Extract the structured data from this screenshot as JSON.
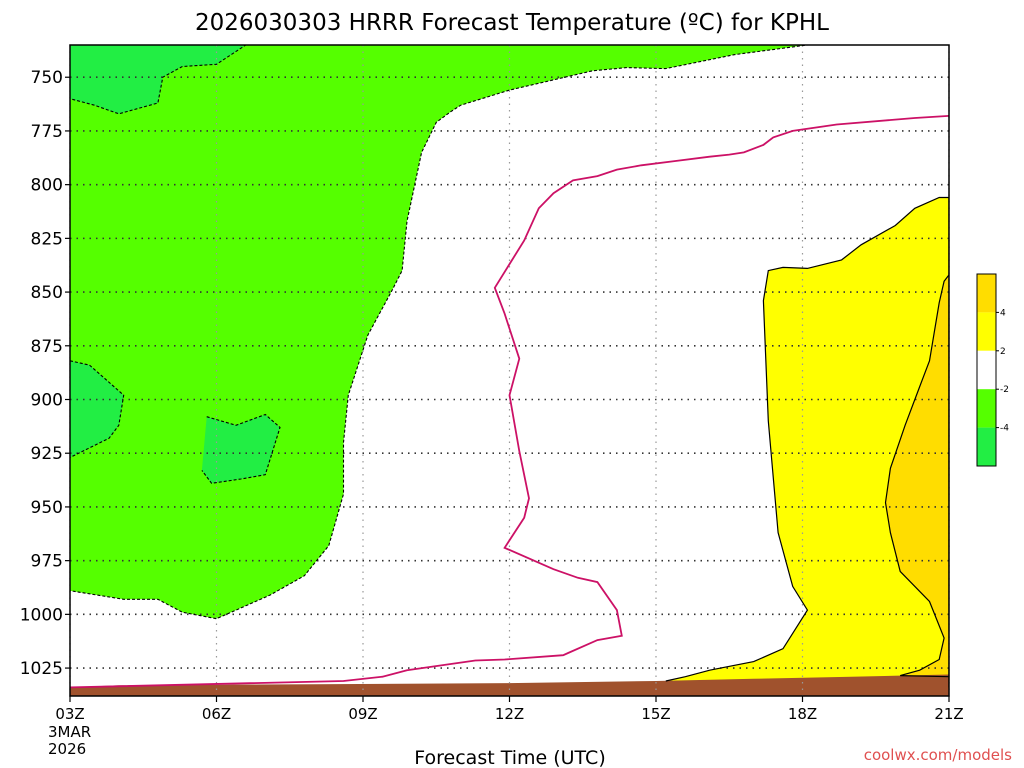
{
  "chart_data": {
    "type": "contour",
    "title": "2026030303 HRRR Forecast Temperature (ºC) for KPHL",
    "xlabel": "Forecast Time (UTC)",
    "ylabel": "",
    "date_label_line1": "3MAR",
    "date_label_line2": "2026",
    "credit": "coolwx.com/models",
    "x_tick_labels": [
      "03Z",
      "06Z",
      "09Z",
      "12Z",
      "15Z",
      "18Z",
      "21Z"
    ],
    "x_hours": [
      0,
      3,
      6,
      9,
      12,
      15,
      18
    ],
    "xlim": [
      0,
      18
    ],
    "y_tick_labels": [
      "750",
      "775",
      "800",
      "825",
      "850",
      "875",
      "900",
      "925",
      "950",
      "975",
      "1000",
      "1025"
    ],
    "y_levels": [
      750,
      775,
      800,
      825,
      850,
      875,
      900,
      925,
      950,
      975,
      1000,
      1025
    ],
    "ylim_hpa": [
      735,
      1038
    ],
    "colorbar_labels": [
      "4",
      "2",
      "-2",
      "-4"
    ],
    "fill_colors": {
      "below_minus4": "#22ee44",
      "minus4_to_minus2": "#55ff00",
      "minus2_to_2": "#ffffff",
      "2_to_4": "#ffff00",
      "above_4": "#ffdd00",
      "ground": "#a0522d",
      "zero_line": "#cc1166"
    },
    "regions": {
      "cold_minus2": [
        [
          0,
          735
        ],
        [
          15.1,
          735
        ],
        [
          13.6,
          739.5
        ],
        [
          12.2,
          746
        ],
        [
          11.4,
          745.5
        ],
        [
          10.7,
          747
        ],
        [
          9,
          756
        ],
        [
          8,
          763
        ],
        [
          7.8,
          766
        ],
        [
          7.5,
          771
        ],
        [
          7.2,
          785
        ],
        [
          6.9,
          817
        ],
        [
          6.8,
          840
        ],
        [
          6.6,
          849
        ],
        [
          6.1,
          870
        ],
        [
          5.7,
          898
        ],
        [
          5.6,
          920
        ],
        [
          5.6,
          944
        ],
        [
          5.3,
          968
        ],
        [
          4.8,
          982
        ],
        [
          4.1,
          991
        ],
        [
          3.6,
          996
        ],
        [
          3,
          1002
        ],
        [
          2.3,
          999
        ],
        [
          1.8,
          993
        ],
        [
          1.1,
          993
        ],
        [
          0,
          989
        ]
      ],
      "cold_minus4_a": [
        [
          0,
          735
        ],
        [
          0.4,
          735
        ],
        [
          0,
          735.5
        ]
      ],
      "cold_minus4_b": [
        [
          0,
          735
        ],
        [
          3.6,
          735
        ],
        [
          3,
          744
        ],
        [
          2.3,
          745
        ],
        [
          1.9,
          750
        ],
        [
          1.8,
          762
        ],
        [
          1.0,
          767
        ],
        [
          0.5,
          763
        ],
        [
          0,
          760
        ]
      ],
      "cold_minus4_c": [
        [
          0,
          882
        ],
        [
          0.4,
          884
        ],
        [
          1.1,
          898
        ],
        [
          1.0,
          912
        ],
        [
          0.8,
          918
        ],
        [
          0,
          927
        ]
      ],
      "cold_minus4_d": [
        [
          2.8,
          908
        ],
        [
          3.4,
          912
        ],
        [
          4.0,
          907
        ],
        [
          4.3,
          913
        ],
        [
          4.0,
          935
        ],
        [
          3.5,
          937
        ],
        [
          2.9,
          939
        ],
        [
          2.7,
          933
        ]
      ],
      "warm_2": [
        [
          12.2,
          1031
        ],
        [
          12.6,
          1029
        ],
        [
          13.1,
          1026
        ],
        [
          14,
          1022
        ],
        [
          14.6,
          1016
        ],
        [
          15.1,
          998
        ],
        [
          14.8,
          987
        ],
        [
          14.5,
          962
        ],
        [
          14.3,
          910
        ],
        [
          14.2,
          854
        ],
        [
          14.3,
          840
        ],
        [
          14.6,
          838.5
        ],
        [
          15.1,
          839
        ],
        [
          15.8,
          835
        ],
        [
          16.2,
          828
        ],
        [
          16.9,
          819
        ],
        [
          17.3,
          811
        ],
        [
          17.8,
          806
        ],
        [
          18,
          806
        ],
        [
          18,
          1034
        ]
      ],
      "warm_4": [
        [
          18,
          842
        ],
        [
          17.9,
          845
        ],
        [
          17.8,
          855
        ],
        [
          17.6,
          882
        ],
        [
          17.4,
          894
        ],
        [
          17.1,
          912
        ],
        [
          16.8,
          932
        ],
        [
          16.7,
          948
        ],
        [
          16.8,
          962
        ],
        [
          17,
          980
        ],
        [
          17.6,
          994
        ],
        [
          17.9,
          1011
        ],
        [
          17.8,
          1021
        ],
        [
          17.4,
          1026
        ],
        [
          17,
          1028.5
        ],
        [
          18,
          1029
        ]
      ]
    },
    "zero_isotherm": [
      [
        18,
        768
      ],
      [
        17.3,
        769
      ],
      [
        15.7,
        772
      ],
      [
        14.8,
        775
      ],
      [
        14.4,
        778
      ],
      [
        14.2,
        781.5
      ],
      [
        13.8,
        785
      ],
      [
        13.5,
        786
      ],
      [
        13.1,
        787
      ],
      [
        12.4,
        789
      ],
      [
        11.7,
        791
      ],
      [
        11.2,
        793
      ],
      [
        10.8,
        796
      ],
      [
        10.3,
        798
      ],
      [
        9.9,
        804
      ],
      [
        9.6,
        811
      ],
      [
        9.3,
        826
      ],
      [
        9.0,
        837
      ],
      [
        8.7,
        848
      ],
      [
        8.9,
        860
      ],
      [
        9.2,
        881
      ],
      [
        9.0,
        898
      ],
      [
        9.2,
        924
      ],
      [
        9.4,
        946
      ],
      [
        9.3,
        955
      ],
      [
        8.9,
        969
      ],
      [
        9.9,
        979
      ],
      [
        10.4,
        983
      ],
      [
        10.8,
        985
      ],
      [
        11.2,
        998
      ],
      [
        11.3,
        1010
      ],
      [
        10.8,
        1012
      ],
      [
        10.2,
        1018
      ],
      [
        10.1,
        1019
      ],
      [
        8.9,
        1021
      ],
      [
        8.3,
        1021.5
      ],
      [
        6.9,
        1026
      ],
      [
        6.4,
        1029
      ],
      [
        5.6,
        1031
      ],
      [
        0,
        1034
      ]
    ],
    "ground_top": [
      [
        0,
        1034
      ],
      [
        1,
        1033
      ],
      [
        5,
        1032.5
      ],
      [
        9,
        1032
      ],
      [
        12,
        1031
      ],
      [
        14,
        1030
      ],
      [
        16,
        1029
      ],
      [
        18,
        1028
      ]
    ]
  }
}
